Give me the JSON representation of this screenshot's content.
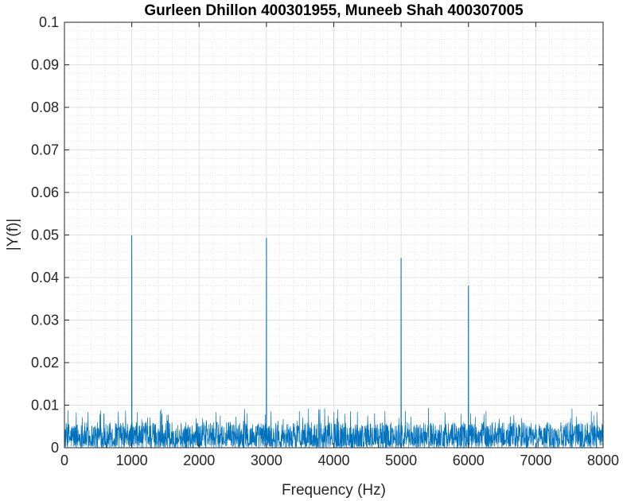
{
  "chart_data": {
    "type": "line",
    "title": "Gurleen Dhillon 400301955, Muneeb Shah 400307005",
    "xlabel": "Frequency (Hz)",
    "ylabel": "|Y(f)|",
    "xlim": [
      0,
      8000
    ],
    "ylim": [
      0,
      0.1
    ],
    "xticks": [
      0,
      1000,
      2000,
      3000,
      4000,
      5000,
      6000,
      7000,
      8000
    ],
    "xtick_labels": [
      "0",
      "1000",
      "2000",
      "3000",
      "4000",
      "5000",
      "6000",
      "7000",
      "8000"
    ],
    "yticks": [
      0,
      0.01,
      0.02,
      0.03,
      0.04,
      0.05,
      0.06,
      0.07,
      0.08,
      0.09,
      0.1
    ],
    "ytick_labels": [
      "0",
      "0.01",
      "0.02",
      "0.03",
      "0.04",
      "0.05",
      "0.06",
      "0.07",
      "0.08",
      "0.09",
      "0.1"
    ],
    "grid": true,
    "minor_grid": true,
    "line_color": "#0072BD",
    "noise_floor": {
      "typical_max": 0.006,
      "peak_max": 0.0095
    },
    "peaks": [
      {
        "x": 1000,
        "y": 0.0499
      },
      {
        "x": 3000,
        "y": 0.0493
      },
      {
        "x": 5000,
        "y": 0.0446
      },
      {
        "x": 6000,
        "y": 0.0381
      }
    ]
  }
}
